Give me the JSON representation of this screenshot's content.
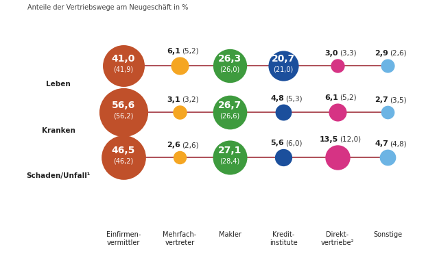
{
  "chart_data": {
    "type": "bubble",
    "title": "Anteile der Vertriebswege am Neugeschäft in %",
    "categories": [
      "Einfirmen-\nvermittler",
      "Mehrfach-\nvertreter",
      "Makler",
      "Kredit-\ninstitute",
      "Direkt-\nvertriebe²",
      "Sonstige"
    ],
    "colors": [
      "#c0502a",
      "#f5a623",
      "#3e9b3e",
      "#1b4f9c",
      "#d63384",
      "#6cb4e4"
    ],
    "data_labels": true,
    "series": [
      {
        "name": "Leben",
        "values": [
          41.0,
          6.1,
          26.3,
          20.7,
          3.0,
          2.9
        ],
        "value_labels": [
          "41,0",
          "6,1",
          "26,3",
          "20,7",
          "3,0",
          "2,9"
        ],
        "previous_values": [
          41.9,
          5.2,
          26.0,
          21.0,
          3.3,
          2.6
        ],
        "previous_labels": [
          "(41,9)",
          "(5,2)",
          "(26,0)",
          "(21,0)",
          "(3,3)",
          "(2,6)"
        ]
      },
      {
        "name": "Kranken",
        "values": [
          56.6,
          3.1,
          26.7,
          4.8,
          6.1,
          2.7
        ],
        "value_labels": [
          "56,6",
          "3,1",
          "26,7",
          "4,8",
          "6,1",
          "2,7"
        ],
        "previous_values": [
          56.2,
          3.2,
          26.6,
          5.3,
          5.2,
          3.5
        ],
        "previous_labels": [
          "(56,2)",
          "(3,2)",
          "(26,6)",
          "(5,3)",
          "(5,2)",
          "(3,5)"
        ]
      },
      {
        "name": "Schaden/Unfall¹",
        "values": [
          46.5,
          2.6,
          27.1,
          5.6,
          13.5,
          4.7
        ],
        "value_labels": [
          "46,5",
          "2,6",
          "27,1",
          "5,6",
          "13,5",
          "4,7"
        ],
        "previous_values": [
          46.2,
          2.6,
          28.4,
          6.0,
          12.0,
          4.8
        ],
        "previous_labels": [
          "(46,2)",
          "(2,6)",
          "(28,4)",
          "(6,0)",
          "(12,0)",
          "(4,8)"
        ]
      }
    ]
  }
}
